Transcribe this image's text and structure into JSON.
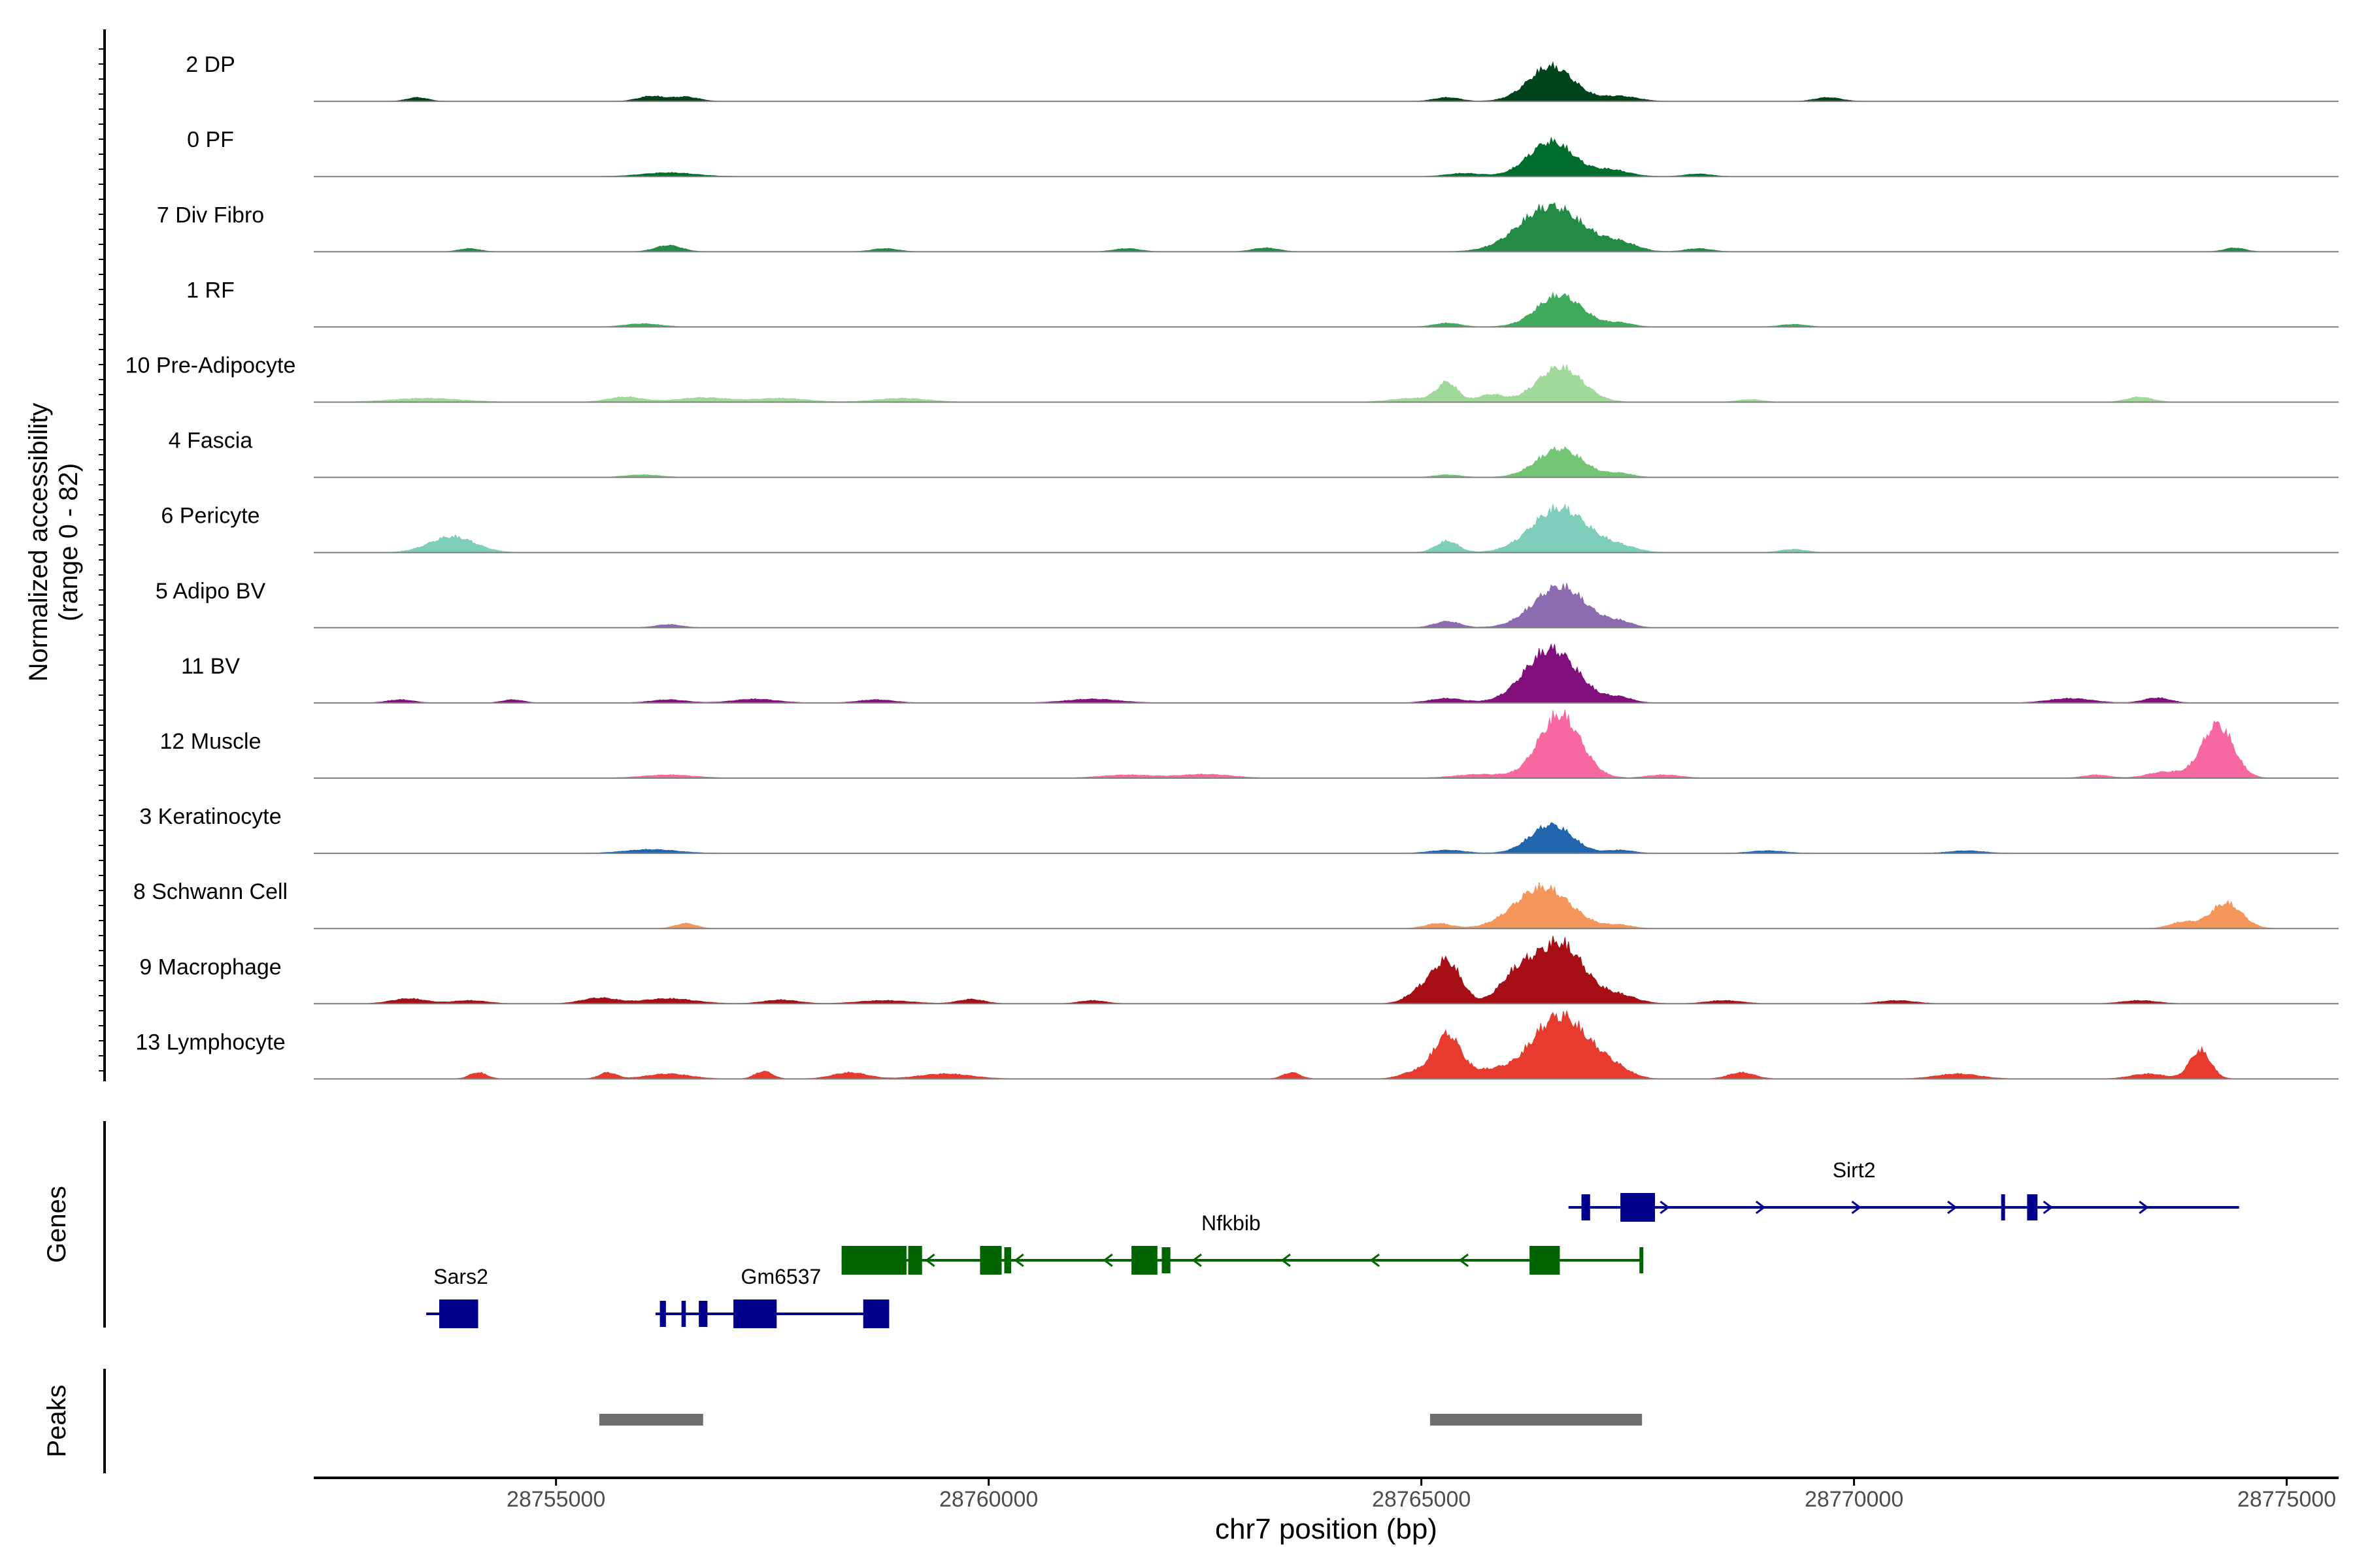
{
  "chart_data": {
    "type": "coverage",
    "ylabel_line1": "Normalized accessibility",
    "ylabel_line2": "(range 0 - 82)",
    "xlabel": "chr7 position (bp)",
    "xlim": [
      28752200,
      28775600
    ],
    "x_ticks": [
      28755000,
      28760000,
      28765000,
      28770000,
      28775000
    ],
    "x_tick_labels": [
      "28755000",
      "28760000",
      "28765000",
      "28770000",
      "28775000"
    ],
    "y_max": 82,
    "panel_titles": {
      "genes": "Genes",
      "peaks": "Peaks"
    },
    "tracks": [
      {
        "name": "2 DP",
        "color": "#00441b",
        "peaks": [
          [
            28753400,
            6,
            120
          ],
          [
            28756100,
            8,
            150
          ],
          [
            28756500,
            7,
            150
          ],
          [
            28765300,
            6,
            150
          ],
          [
            28766500,
            55,
            260
          ],
          [
            28767300,
            8,
            200
          ],
          [
            28769700,
            6,
            150
          ]
        ]
      },
      {
        "name": "0 PF",
        "color": "#006d2c",
        "peaks": [
          [
            28756300,
            6,
            300
          ],
          [
            28765500,
            5,
            200
          ],
          [
            28766500,
            55,
            260
          ],
          [
            28767200,
            10,
            200
          ],
          [
            28768200,
            4,
            150
          ]
        ]
      },
      {
        "name": "7 Div Fibro",
        "color": "#238b45",
        "peaks": [
          [
            28754000,
            5,
            120
          ],
          [
            28756300,
            10,
            150
          ],
          [
            28758800,
            5,
            150
          ],
          [
            28761600,
            5,
            150
          ],
          [
            28763200,
            6,
            150
          ],
          [
            28766500,
            72,
            360
          ],
          [
            28767300,
            12,
            200
          ],
          [
            28768200,
            5,
            150
          ],
          [
            28774400,
            6,
            120
          ]
        ]
      },
      {
        "name": "1 RF",
        "color": "#41ab5d",
        "peaks": [
          [
            28756000,
            5,
            200
          ],
          [
            28765300,
            6,
            150
          ],
          [
            28766600,
            50,
            260
          ],
          [
            28767300,
            6,
            150
          ],
          [
            28769300,
            4,
            150
          ]
        ]
      },
      {
        "name": "10 Pre-Adipocyte",
        "color": "#a1d99b",
        "peaks": [
          [
            28753500,
            6,
            400
          ],
          [
            28755800,
            8,
            200
          ],
          [
            28756700,
            7,
            300
          ],
          [
            28757600,
            6,
            300
          ],
          [
            28759000,
            6,
            300
          ],
          [
            28764900,
            6,
            250
          ],
          [
            28765300,
            30,
            120
          ],
          [
            28765800,
            12,
            150
          ],
          [
            28766600,
            55,
            260
          ],
          [
            28768800,
            4,
            150
          ],
          [
            28773300,
            8,
            150
          ]
        ]
      },
      {
        "name": "4 Fascia",
        "color": "#74c476",
        "peaks": [
          [
            28756000,
            4,
            200
          ],
          [
            28766600,
            45,
            260
          ],
          [
            28767300,
            6,
            150
          ],
          [
            28765300,
            4,
            150
          ]
        ]
      },
      {
        "name": "6 Pericyte",
        "color": "#7fcdbb",
        "peaks": [
          [
            28753800,
            25,
            260
          ],
          [
            28765300,
            18,
            130
          ],
          [
            28766600,
            70,
            320
          ],
          [
            28767300,
            8,
            200
          ],
          [
            28769300,
            5,
            150
          ]
        ]
      },
      {
        "name": "5 Adipo BV",
        "color": "#8c6bb1",
        "peaks": [
          [
            28756300,
            5,
            150
          ],
          [
            28765300,
            10,
            150
          ],
          [
            28766600,
            65,
            300
          ],
          [
            28767300,
            8,
            150
          ]
        ]
      },
      {
        "name": "11 BV",
        "color": "#810f7c",
        "peaks": [
          [
            28753200,
            5,
            150
          ],
          [
            28754500,
            5,
            120
          ],
          [
            28756300,
            5,
            200
          ],
          [
            28757300,
            6,
            250
          ],
          [
            28758700,
            5,
            200
          ],
          [
            28761200,
            6,
            300
          ],
          [
            28765300,
            7,
            200
          ],
          [
            28766500,
            85,
            300
          ],
          [
            28767300,
            8,
            150
          ],
          [
            28772500,
            7,
            250
          ],
          [
            28773500,
            8,
            150
          ]
        ]
      },
      {
        "name": "12 Muscle",
        "color": "#f768a1",
        "peaks": [
          [
            28756300,
            5,
            300
          ],
          [
            28761600,
            5,
            300
          ],
          [
            28762500,
            6,
            300
          ],
          [
            28765700,
            6,
            300
          ],
          [
            28766600,
            100,
            240
          ],
          [
            28767800,
            5,
            200
          ],
          [
            28772800,
            5,
            150
          ],
          [
            28773600,
            10,
            200
          ],
          [
            28774200,
            85,
            180
          ]
        ]
      },
      {
        "name": "3 Keratinocyte",
        "color": "#2166ac",
        "peaks": [
          [
            28756100,
            6,
            300
          ],
          [
            28765300,
            5,
            200
          ],
          [
            28766500,
            45,
            240
          ],
          [
            28767300,
            5,
            150
          ],
          [
            28769000,
            4,
            200
          ],
          [
            28771300,
            4,
            200
          ]
        ]
      },
      {
        "name": "8 Schwann Cell",
        "color": "#f4955a",
        "peaks": [
          [
            28756500,
            8,
            120
          ],
          [
            28765200,
            8,
            150
          ],
          [
            28766400,
            65,
            320
          ],
          [
            28767300,
            5,
            150
          ],
          [
            28773800,
            10,
            150
          ],
          [
            28774300,
            40,
            180
          ]
        ]
      },
      {
        "name": "9 Macrophage",
        "color": "#a50f15",
        "peaks": [
          [
            28753300,
            8,
            200
          ],
          [
            28754000,
            5,
            200
          ],
          [
            28755500,
            9,
            200
          ],
          [
            28756300,
            8,
            300
          ],
          [
            28757600,
            6,
            200
          ],
          [
            28758800,
            5,
            300
          ],
          [
            28759800,
            7,
            150
          ],
          [
            28761200,
            5,
            150
          ],
          [
            28765000,
            20,
            160
          ],
          [
            28765300,
            65,
            160
          ],
          [
            28766100,
            40,
            200
          ],
          [
            28766600,
            95,
            280
          ],
          [
            28767300,
            12,
            200
          ],
          [
            28768500,
            5,
            200
          ],
          [
            28770500,
            5,
            200
          ],
          [
            28773300,
            5,
            200
          ]
        ]
      },
      {
        "name": "13 Lymphocyte",
        "color": "#e63b2e",
        "peaks": [
          [
            28754100,
            10,
            100
          ],
          [
            28755600,
            10,
            100
          ],
          [
            28756300,
            8,
            250
          ],
          [
            28757400,
            12,
            100
          ],
          [
            28758400,
            10,
            200
          ],
          [
            28759500,
            8,
            300
          ],
          [
            28763500,
            10,
            100
          ],
          [
            28764900,
            10,
            150
          ],
          [
            28765300,
            70,
            160
          ],
          [
            28765800,
            12,
            200
          ],
          [
            28766600,
            100,
            320
          ],
          [
            28767200,
            15,
            200
          ],
          [
            28768700,
            10,
            150
          ],
          [
            28771200,
            8,
            250
          ],
          [
            28773400,
            8,
            200
          ],
          [
            28774000,
            45,
            120
          ]
        ]
      }
    ],
    "genes": [
      {
        "name": "Sars2",
        "color": "#00008b",
        "row": 3,
        "start": 28753500,
        "end": 28754100,
        "strand": "+",
        "exons": [
          [
            28753650,
            28754100
          ]
        ],
        "label_x": 28753900
      },
      {
        "name": "Gm6537",
        "color": "#00008b",
        "row": 3,
        "start": 28756150,
        "end": 28758850,
        "strand": "+",
        "exons": [
          [
            28756200,
            28756270
          ],
          [
            28756450,
            28756500
          ],
          [
            28756650,
            28756750
          ],
          [
            28757050,
            28757550
          ],
          [
            28758550,
            28758850
          ]
        ],
        "label_x": 28757600
      },
      {
        "name": "Nfkbib",
        "color": "#006400",
        "row": 2,
        "start": 28758300,
        "end": 28767550,
        "strand": "-",
        "exons": [
          [
            28758300,
            28759050
          ],
          [
            28759070,
            28759230
          ],
          [
            28759900,
            28760150
          ],
          [
            28760180,
            28760260
          ],
          [
            28761650,
            28761950
          ],
          [
            28762000,
            28762100
          ],
          [
            28766250,
            28766600
          ],
          [
            28767520,
            28767560
          ]
        ],
        "label_x": 28762800
      },
      {
        "name": "Sirt2",
        "color": "#00008b",
        "row": 1,
        "start": 28766700,
        "end": 28774450,
        "strand": "+",
        "exons": [
          [
            28766850,
            28766950
          ],
          [
            28767300,
            28767700
          ],
          [
            28771700,
            28771740
          ],
          [
            28772000,
            28772120
          ]
        ],
        "label_x": 28770000
      }
    ],
    "peak_regions": [
      [
        28755500,
        28756700
      ],
      [
        28765100,
        28767550
      ]
    ]
  }
}
